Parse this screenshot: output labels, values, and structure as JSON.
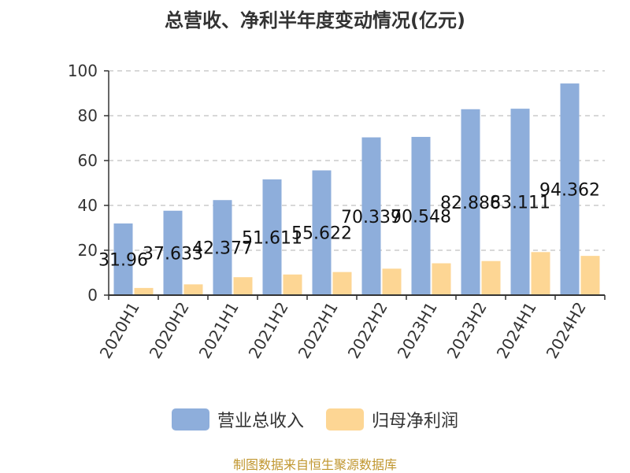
{
  "chart_data": {
    "type": "bar",
    "title": "总营收、净利半年度变动情况(亿元)",
    "categories": [
      "2020H1",
      "2020H2",
      "2021H1",
      "2021H2",
      "2022H1",
      "2022H2",
      "2023H1",
      "2023H2",
      "2024H1",
      "2024H2"
    ],
    "series": [
      {
        "name": "营业总收入",
        "color": "#8eaedb",
        "values": [
          31.96,
          37.633,
          42.377,
          51.611,
          55.622,
          70.339,
          70.548,
          82.886,
          83.111,
          94.362
        ],
        "labels": [
          "31.96",
          "37.633",
          "42.377",
          "51.611",
          "55.622",
          "70.339",
          "70.548",
          "82.886",
          "83.111",
          "94.362"
        ]
      },
      {
        "name": "归母净利润",
        "color": "#fdd694",
        "values": [
          3.2,
          4.8,
          8.0,
          9.2,
          10.3,
          11.8,
          14.2,
          15.2,
          19.2,
          17.5
        ]
      }
    ],
    "ylim": [
      0,
      100
    ],
    "yticks": [
      0,
      20,
      40,
      60,
      80,
      100
    ],
    "grid": true,
    "legend_position": "bottom"
  },
  "source_note": "制图数据来自恒生聚源数据库"
}
